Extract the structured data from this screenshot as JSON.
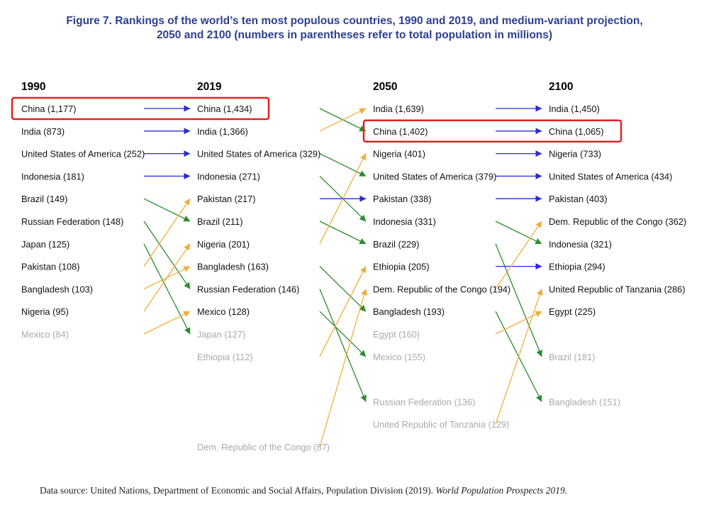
{
  "title": {
    "line1": "Figure 7. Rankings of the world’s ten most populous countries, 1990 and 2019, and medium-variant projection,",
    "line2": "2050 and 2100 (numbers in parentheses refer to total population in millions)"
  },
  "source": {
    "text": "Data source: United Nations, Department of Economic and Social Affairs, Population Division (2019). ",
    "italic": "World Population Prospects 2019."
  },
  "colors": {
    "same_rank": "#2b2bd6",
    "rank_up": "#f2ae3a",
    "rank_down": "#2e8b2e",
    "highlight": "#e02020",
    "label": "#111111",
    "label_out": "#aaaaaa"
  },
  "chart_data": {
    "type": "bump",
    "unit": "millions",
    "highlight": "China",
    "years": [
      {
        "year": "1990",
        "rows": [
          {
            "country": "China",
            "value": "1,177",
            "rank": 1
          },
          {
            "country": "India",
            "value": "873",
            "rank": 2
          },
          {
            "country": "United States of America",
            "value": "252",
            "rank": 3
          },
          {
            "country": "Indonesia",
            "value": "181",
            "rank": 4
          },
          {
            "country": "Brazil",
            "value": "149",
            "rank": 5
          },
          {
            "country": "Russian Federation",
            "value": "148",
            "rank": 6
          },
          {
            "country": "Japan",
            "value": "125",
            "rank": 7
          },
          {
            "country": "Pakistan",
            "value": "108",
            "rank": 8
          },
          {
            "country": "Bangladesh",
            "value": "103",
            "rank": 9
          },
          {
            "country": "Nigeria",
            "value": "95",
            "rank": 10
          },
          {
            "country": "Mexico",
            "value": "84",
            "rank": 11
          }
        ]
      },
      {
        "year": "2019",
        "rows": [
          {
            "country": "China",
            "value": "1,434",
            "rank": 1
          },
          {
            "country": "India",
            "value": "1,366",
            "rank": 2
          },
          {
            "country": "United States of America",
            "value": "329",
            "rank": 3
          },
          {
            "country": "Indonesia",
            "value": "271",
            "rank": 4
          },
          {
            "country": "Pakistan",
            "value": "217",
            "rank": 5
          },
          {
            "country": "Brazil",
            "value": "211",
            "rank": 6
          },
          {
            "country": "Nigeria",
            "value": "201",
            "rank": 7
          },
          {
            "country": "Bangladesh",
            "value": "163",
            "rank": 8
          },
          {
            "country": "Russian Federation",
            "value": "146",
            "rank": 9
          },
          {
            "country": "Mexico",
            "value": "128",
            "rank": 10
          },
          {
            "country": "Japan",
            "value": "127",
            "rank": 11
          },
          {
            "country": "Ethiopia",
            "value": "112",
            "rank": 12
          },
          {
            "country": "Dem. Republic of the Congo",
            "value": "87",
            "rank": 16
          }
        ]
      },
      {
        "year": "2050",
        "rows": [
          {
            "country": "India",
            "value": "1,639",
            "rank": 1
          },
          {
            "country": "China",
            "value": "1,402",
            "rank": 2
          },
          {
            "country": "Nigeria",
            "value": "401",
            "rank": 3
          },
          {
            "country": "United States of America",
            "value": "379",
            "rank": 4
          },
          {
            "country": "Pakistan",
            "value": "338",
            "rank": 5
          },
          {
            "country": "Indonesia",
            "value": "331",
            "rank": 6
          },
          {
            "country": "Brazil",
            "value": "229",
            "rank": 7
          },
          {
            "country": "Ethiopia",
            "value": "205",
            "rank": 8
          },
          {
            "country": "Dem. Republic of the Congo",
            "value": "194",
            "rank": 9
          },
          {
            "country": "Bangladesh",
            "value": "193",
            "rank": 10
          },
          {
            "country": "Egypt",
            "value": "160",
            "rank": 11
          },
          {
            "country": "Mexico",
            "value": "155",
            "rank": 12
          },
          {
            "country": "Russian Federation",
            "value": "136",
            "rank": 14
          },
          {
            "country": "United Republic of Tanzania",
            "value": "129",
            "rank": 15
          }
        ]
      },
      {
        "year": "2100",
        "rows": [
          {
            "country": "India",
            "value": "1,450",
            "rank": 1
          },
          {
            "country": "China",
            "value": "1,065",
            "rank": 2
          },
          {
            "country": "Nigeria",
            "value": "733",
            "rank": 3
          },
          {
            "country": "United States of America",
            "value": "434",
            "rank": 4
          },
          {
            "country": "Pakistan",
            "value": "403",
            "rank": 5
          },
          {
            "country": "Dem. Republic of the Congo",
            "value": "362",
            "rank": 6
          },
          {
            "country": "Indonesia",
            "value": "321",
            "rank": 7
          },
          {
            "country": "Ethiopia",
            "value": "294",
            "rank": 8
          },
          {
            "country": "United Republic of Tanzania",
            "value": "286",
            "rank": 9
          },
          {
            "country": "Egypt",
            "value": "225",
            "rank": 10
          },
          {
            "country": "Brazil",
            "value": "181",
            "rank": 12
          },
          {
            "country": "Bangladesh",
            "value": "151",
            "rank": 14
          }
        ]
      }
    ]
  }
}
